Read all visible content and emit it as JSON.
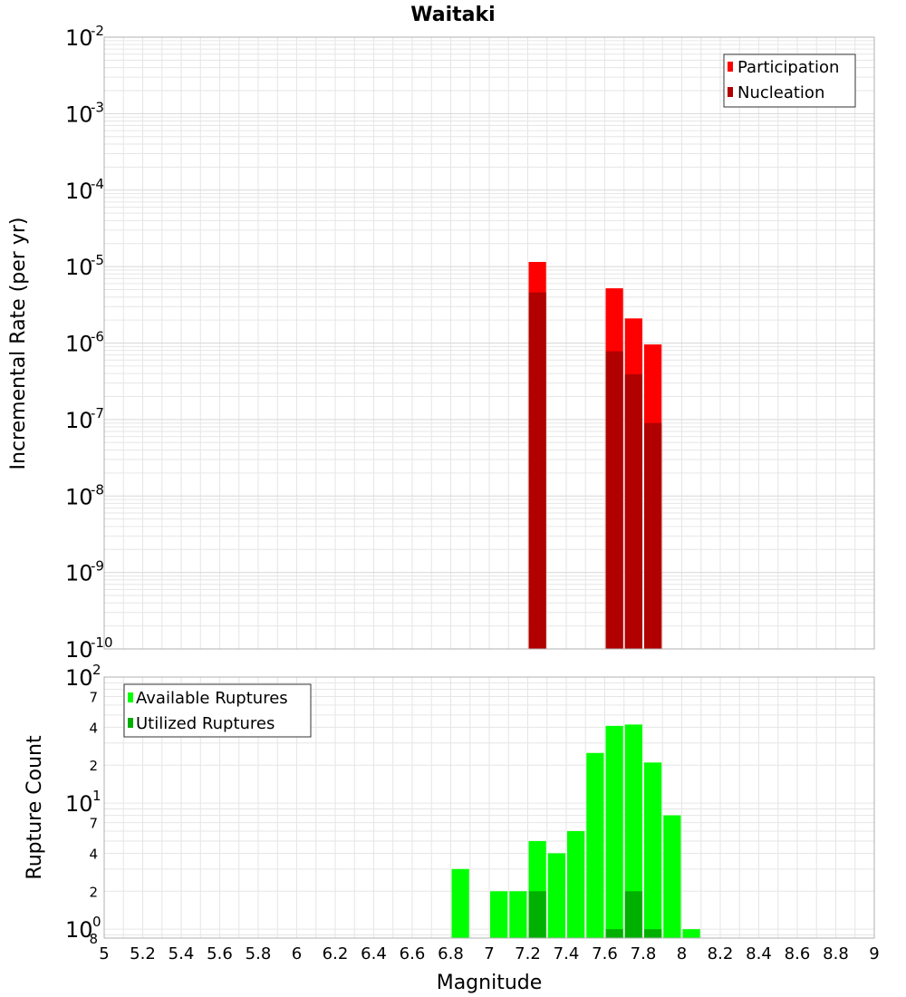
{
  "colors": {
    "participation": "#ff0000",
    "nucleation": "#b00000",
    "available": "#00ff00",
    "utilized": "#00b000",
    "grid": "#e6e6e6",
    "frame": "#b0b0b0"
  },
  "chart_data": [
    {
      "type": "bar",
      "title": "Waitaki",
      "xlabel": "",
      "ylabel": "Incremental Rate (per yr)",
      "yscale": "log",
      "ylim": [
        1e-10,
        0.01
      ],
      "xlim": [
        5,
        9
      ],
      "bar_width": 0.1,
      "legend": [
        "Participation",
        "Nucleation"
      ],
      "legend_position": "top-right",
      "y_tick_bases": [
        "10",
        "10",
        "10",
        "10",
        "10",
        "10",
        "10",
        "10",
        "10"
      ],
      "y_tick_exponents": [
        "-2",
        "-3",
        "-4",
        "-5",
        "-6",
        "-7",
        "-8",
        "-9",
        "-10"
      ],
      "series": [
        {
          "name": "Participation",
          "x": [
            7.25,
            7.65,
            7.75,
            7.85
          ],
          "values": [
            1.15e-05,
            5.2e-06,
            2.1e-06,
            9.6e-07
          ]
        },
        {
          "name": "Nucleation",
          "x": [
            7.25,
            7.65,
            7.75,
            7.85
          ],
          "values": [
            4.6e-06,
            7.8e-07,
            3.9e-07,
            9e-08
          ]
        }
      ]
    },
    {
      "type": "bar",
      "xlabel": "Magnitude",
      "ylabel": "Rupture Count",
      "yscale": "log",
      "ylim": [
        0.85,
        100
      ],
      "xlim": [
        5,
        9
      ],
      "bar_width": 0.1,
      "legend": [
        "Available Ruptures",
        "Utilized Ruptures"
      ],
      "legend_position": "top-left",
      "x_ticks": [
        "5",
        "5.2",
        "5.4",
        "5.6",
        "5.8",
        "6",
        "6.2",
        "6.4",
        "6.6",
        "6.8",
        "7",
        "7.2",
        "7.4",
        "7.6",
        "7.8",
        "8",
        "8.2",
        "8.4",
        "8.6",
        "8.8",
        "9"
      ],
      "y_major_bases": [
        "10",
        "10",
        "10"
      ],
      "y_major_exponents": [
        "2",
        "1",
        "0"
      ],
      "y_minor_labels": [
        "7",
        "4",
        "2",
        "7",
        "4",
        "2",
        "8"
      ],
      "series": [
        {
          "name": "Available Ruptures",
          "x": [
            6.85,
            7.05,
            7.15,
            7.25,
            7.35,
            7.45,
            7.55,
            7.65,
            7.75,
            7.85,
            7.95,
            8.05
          ],
          "values": [
            3,
            2,
            2,
            5,
            4,
            6,
            25,
            41,
            42,
            21,
            8,
            1
          ]
        },
        {
          "name": "Utilized Ruptures",
          "x": [
            7.25,
            7.65,
            7.75,
            7.85
          ],
          "values": [
            2,
            1,
            2,
            1
          ]
        }
      ]
    }
  ]
}
